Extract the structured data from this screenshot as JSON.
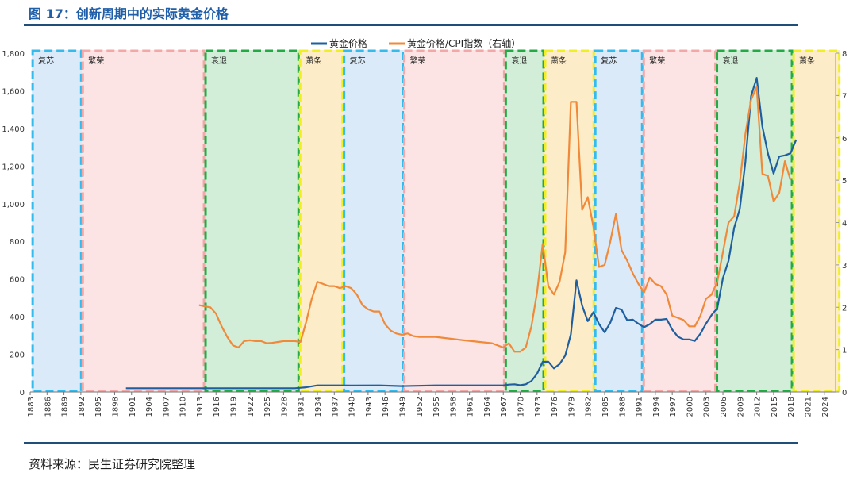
{
  "header": {
    "title": "图 17：创新周期中的实际黄金价格",
    "source": "资料来源：民生证券研究院整理"
  },
  "chart_data": {
    "type": "line",
    "legend": [
      "黄金价格",
      "黄金价格/CPI指数（右轴）"
    ],
    "legend_position": "top-center",
    "xlim": [
      1883,
      2026
    ],
    "x_ticks": [
      1883,
      1886,
      1889,
      1892,
      1895,
      1898,
      1901,
      1904,
      1907,
      1910,
      1913,
      1916,
      1919,
      1922,
      1925,
      1928,
      1931,
      1934,
      1937,
      1940,
      1943,
      1946,
      1949,
      1952,
      1955,
      1958,
      1961,
      1964,
      1967,
      1970,
      1973,
      1976,
      1979,
      1982,
      1985,
      1988,
      1991,
      1994,
      1997,
      2000,
      2003,
      2006,
      2009,
      2012,
      2015,
      2018,
      2021,
      2024
    ],
    "y_left": {
      "min": 0,
      "max": 1800,
      "ticks": [
        "0",
        "200",
        "400",
        "600",
        "800",
        "1,000",
        "1,200",
        "1,400",
        "1,600",
        "1,800"
      ]
    },
    "y_right": {
      "min": 0,
      "max": 8,
      "ticks": [
        "0",
        "1",
        "2",
        "3",
        "4",
        "5",
        "6",
        "7",
        "8"
      ]
    },
    "phases": [
      {
        "label": "复苏",
        "start": 1883.3,
        "end": 1892.2,
        "fill": "#dbeaf8",
        "border": "#33bbee"
      },
      {
        "label": "繁荣",
        "start": 1892.2,
        "end": 1914.0,
        "fill": "#fce4e4",
        "border": "#f4a7a7"
      },
      {
        "label": "衰退",
        "start": 1914.0,
        "end": 1930.8,
        "fill": "#d3eed8",
        "border": "#22aa44"
      },
      {
        "label": "萧条",
        "start": 1930.8,
        "end": 1938.6,
        "fill": "#fdecc8",
        "border": "#f0f020"
      },
      {
        "label": "复苏",
        "start": 1938.6,
        "end": 1949.3,
        "fill": "#dbeaf8",
        "border": "#33bbee"
      },
      {
        "label": "繁荣",
        "start": 1949.3,
        "end": 1967.3,
        "fill": "#fce4e4",
        "border": "#f4a7a7"
      },
      {
        "label": "衰退",
        "start": 1967.3,
        "end": 1974.3,
        "fill": "#d3eed8",
        "border": "#22aa44"
      },
      {
        "label": "萧条",
        "start": 1974.3,
        "end": 1983.2,
        "fill": "#fdecc8",
        "border": "#f0f020"
      },
      {
        "label": "复苏",
        "start": 1983.2,
        "end": 1991.8,
        "fill": "#dbeaf8",
        "border": "#33bbee"
      },
      {
        "label": "繁荣",
        "start": 1991.8,
        "end": 2004.8,
        "fill": "#fce4e4",
        "border": "#f4a7a7"
      },
      {
        "label": "衰退",
        "start": 2004.8,
        "end": 2018.4,
        "fill": "#d3eed8",
        "border": "#22aa44"
      },
      {
        "label": "萧条",
        "start": 2018.4,
        "end": 2026.8,
        "fill": "#fdecc8",
        "border": "#f0f020"
      }
    ],
    "series": [
      {
        "name": "黄金价格",
        "axis": "left",
        "color": "#1f5fa0",
        "x": [
          1900,
          1910,
          1920,
          1930,
          1932,
          1934,
          1936,
          1938,
          1940,
          1945,
          1949,
          1955,
          1960,
          1965,
          1967,
          1968,
          1969,
          1970,
          1971,
          1972,
          1973,
          1974,
          1975,
          1976,
          1977,
          1978,
          1979,
          1980,
          1981,
          1982,
          1983,
          1984,
          1985,
          1986,
          1987,
          1988,
          1989,
          1990,
          1991,
          1992,
          1993,
          1994,
          1995,
          1996,
          1997,
          1998,
          1999,
          2000,
          2001,
          2002,
          2003,
          2004,
          2005,
          2006,
          2007,
          2008,
          2009,
          2010,
          2011,
          2012,
          2013,
          2014,
          2015,
          2016,
          2017,
          2018,
          2019
        ],
        "y": [
          20,
          20,
          20,
          20,
          25,
          35,
          35,
          35,
          34,
          35,
          31,
          35,
          35,
          35,
          35,
          39,
          41,
          36,
          41,
          58,
          97,
          160,
          161,
          125,
          148,
          193,
          306,
          593,
          459,
          376,
          424,
          361,
          317,
          368,
          447,
          437,
          381,
          384,
          362,
          344,
          360,
          384,
          384,
          388,
          331,
          294,
          279,
          279,
          271,
          310,
          363,
          409,
          445,
          604,
          697,
          872,
          972,
          1225,
          1572,
          1669,
          1411,
          1266,
          1160,
          1251,
          1257,
          1268,
          1340
        ]
      },
      {
        "name": "黄金价格/CPI指数（右轴）",
        "axis": "right",
        "color": "#f08a3a",
        "x": [
          1913,
          1914,
          1915,
          1916,
          1917,
          1918,
          1919,
          1920,
          1921,
          1922,
          1923,
          1924,
          1925,
          1926,
          1927,
          1928,
          1929,
          1930,
          1931,
          1932,
          1933,
          1934,
          1935,
          1936,
          1937,
          1938,
          1939,
          1940,
          1941,
          1942,
          1943,
          1944,
          1945,
          1946,
          1947,
          1948,
          1949,
          1950,
          1951,
          1952,
          1955,
          1960,
          1965,
          1967,
          1968,
          1969,
          1970,
          1971,
          1972,
          1973,
          1974,
          1975,
          1976,
          1977,
          1978,
          1979,
          1980,
          1981,
          1982,
          1983,
          1984,
          1985,
          1986,
          1987,
          1988,
          1989,
          1990,
          1991,
          1992,
          1993,
          1994,
          1995,
          1996,
          1997,
          1998,
          1999,
          2000,
          2001,
          2002,
          2003,
          2004,
          2005,
          2006,
          2007,
          2008,
          2009,
          2010,
          2011,
          2012,
          2013,
          2014,
          2015,
          2016,
          2017,
          2018
        ],
        "y": [
          2.05,
          2.02,
          2.0,
          1.85,
          1.55,
          1.3,
          1.1,
          1.05,
          1.2,
          1.22,
          1.2,
          1.2,
          1.15,
          1.16,
          1.18,
          1.2,
          1.2,
          1.2,
          1.18,
          1.65,
          2.2,
          2.6,
          2.55,
          2.5,
          2.5,
          2.45,
          2.5,
          2.45,
          2.3,
          2.05,
          1.95,
          1.9,
          1.9,
          1.6,
          1.45,
          1.38,
          1.35,
          1.38,
          1.32,
          1.3,
          1.3,
          1.22,
          1.15,
          1.05,
          1.15,
          0.95,
          0.95,
          1.05,
          1.55,
          2.35,
          3.5,
          2.5,
          2.3,
          2.6,
          3.3,
          6.85,
          6.85,
          4.3,
          4.6,
          3.9,
          2.95,
          3.0,
          3.55,
          4.2,
          3.35,
          3.1,
          2.8,
          2.55,
          2.35,
          2.7,
          2.55,
          2.5,
          2.3,
          1.8,
          1.75,
          1.7,
          1.55,
          1.55,
          1.8,
          2.2,
          2.3,
          2.6,
          3.3,
          4.0,
          4.15,
          4.95,
          6.1,
          6.9,
          7.2,
          5.15,
          5.1,
          4.5,
          4.7,
          5.45,
          5.0
        ]
      }
    ]
  }
}
